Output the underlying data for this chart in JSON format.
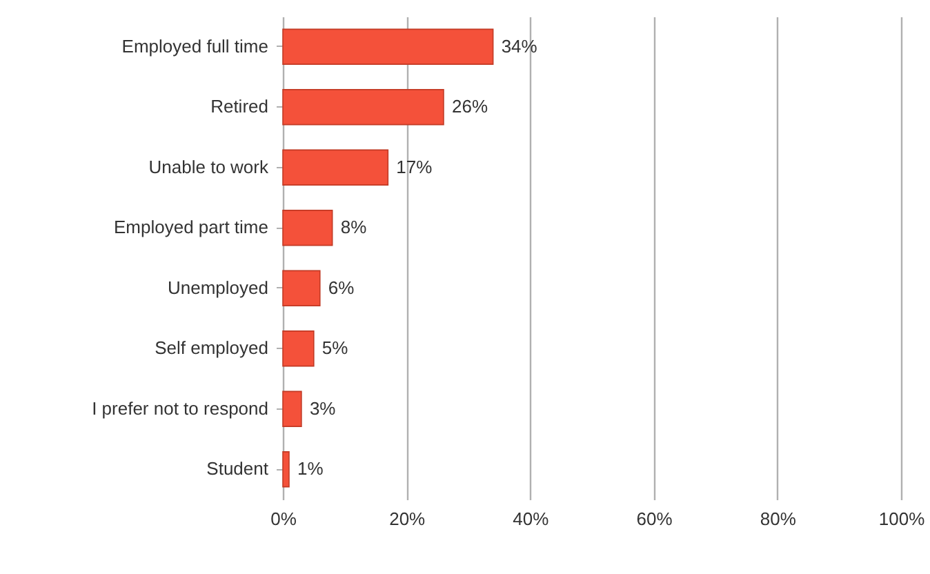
{
  "chart_data": {
    "type": "bar",
    "orientation": "horizontal",
    "categories": [
      "Employed full time",
      "Retired",
      "Unable to work",
      "Employed part time",
      "Unemployed",
      "Self employed",
      "I prefer not to respond",
      "Student"
    ],
    "values": [
      34,
      26,
      17,
      8,
      6,
      5,
      3,
      1
    ],
    "value_labels": [
      "34%",
      "26%",
      "17%",
      "8%",
      "6%",
      "5%",
      "3%",
      "1%"
    ],
    "color": "#f4513a",
    "xlim": [
      0,
      100
    ],
    "xticks": [
      {
        "value": 0,
        "label": "0%"
      },
      {
        "value": 20,
        "label": "20%"
      },
      {
        "value": 40,
        "label": "40%"
      },
      {
        "value": 60,
        "label": "60%"
      },
      {
        "value": 80,
        "label": "80%"
      },
      {
        "value": 100,
        "label": "100%"
      }
    ],
    "grid": "x"
  }
}
